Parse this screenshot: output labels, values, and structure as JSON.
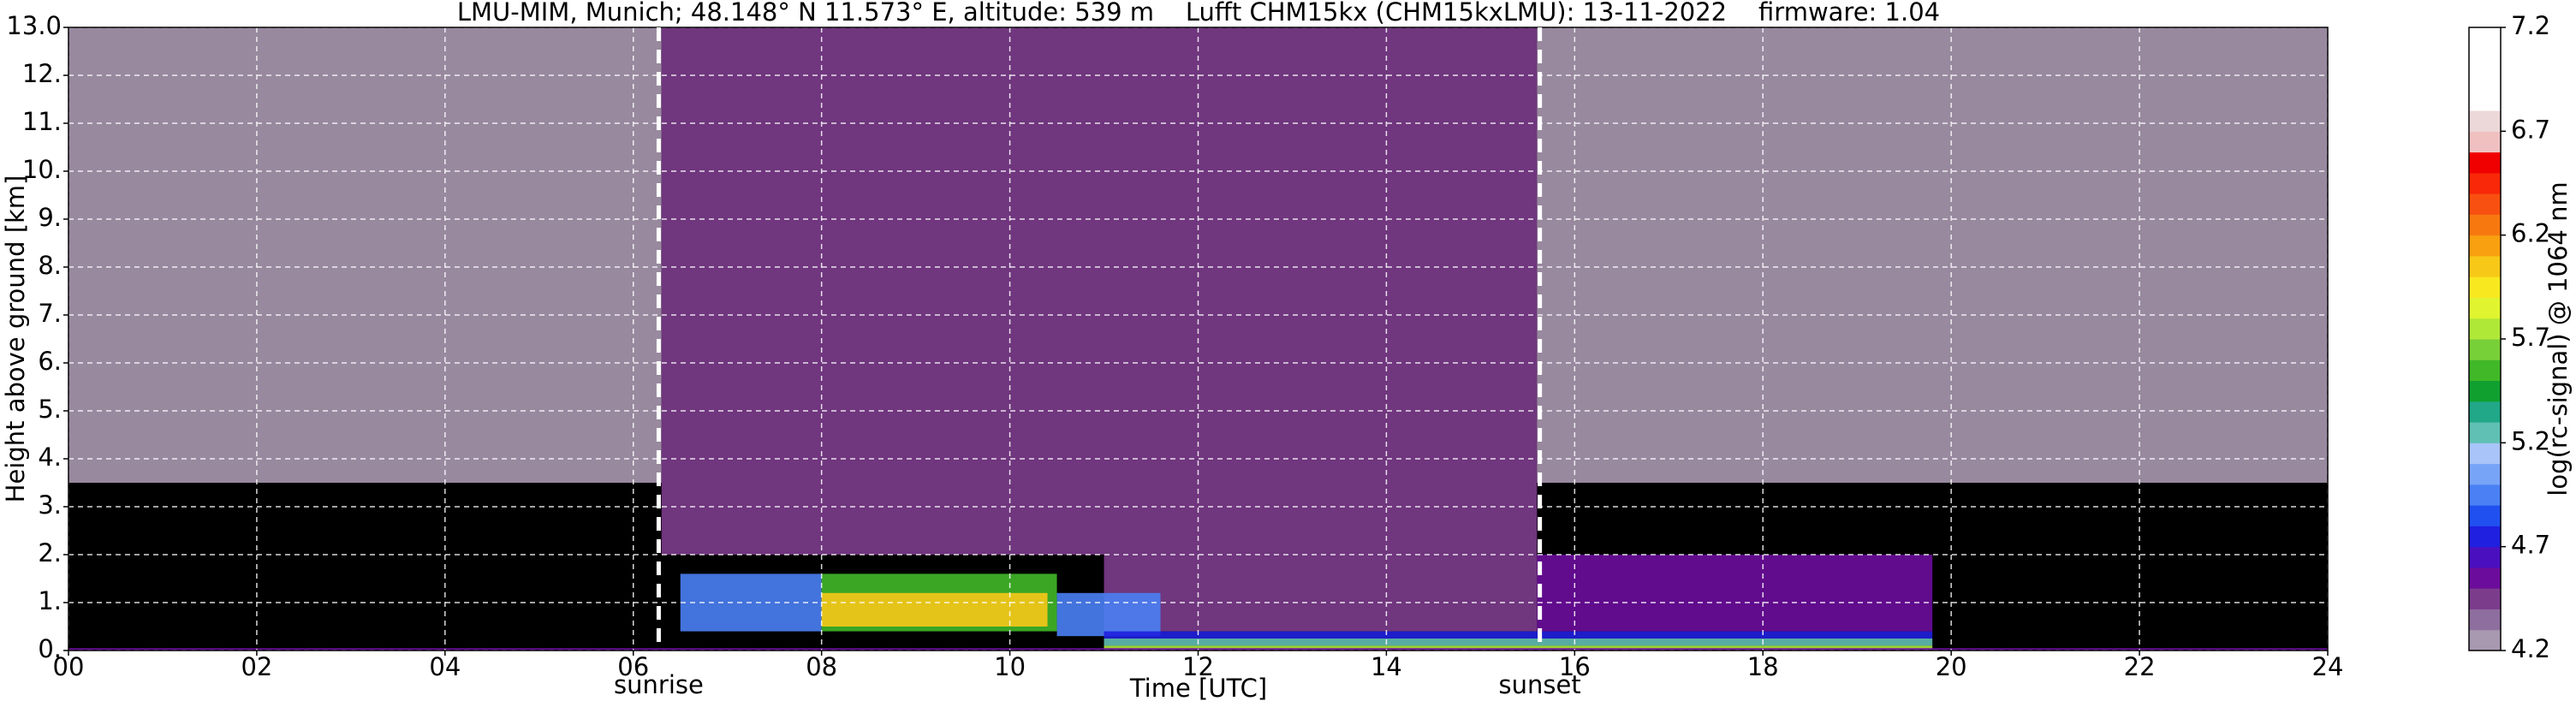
{
  "chart_data": {
    "type": "heatmap",
    "title": "LMU-MIM, Munich; 48.148° N 11.573° E, altitude: 539 m    Lufft CHM15kx (CHM15kxLMU): 13-11-2022    firmware: 1.04",
    "xlabel": "Time [UTC]",
    "ylabel": "Height above ground [km]",
    "colorbar_label": "log(rc-signal) @ 1064 nm",
    "xlim": [
      0,
      24
    ],
    "ylim": [
      0,
      13
    ],
    "zlim": [
      4.2,
      7.2
    ],
    "xticks": [
      {
        "value": 0,
        "label": "00"
      },
      {
        "value": 2,
        "label": "02"
      },
      {
        "value": 4,
        "label": "04"
      },
      {
        "value": 6,
        "label": "06"
      },
      {
        "value": 8,
        "label": "08"
      },
      {
        "value": 10,
        "label": "10"
      },
      {
        "value": 12,
        "label": "12"
      },
      {
        "value": 14,
        "label": "14"
      },
      {
        "value": 16,
        "label": "16"
      },
      {
        "value": 18,
        "label": "18"
      },
      {
        "value": 20,
        "label": "20"
      },
      {
        "value": 22,
        "label": "22"
      },
      {
        "value": 24,
        "label": "24"
      }
    ],
    "yticks": [
      {
        "value": 0,
        "label": "0."
      },
      {
        "value": 1,
        "label": "1."
      },
      {
        "value": 2,
        "label": "2."
      },
      {
        "value": 3,
        "label": "3."
      },
      {
        "value": 4,
        "label": "4."
      },
      {
        "value": 5,
        "label": "5."
      },
      {
        "value": 6,
        "label": "6."
      },
      {
        "value": 7,
        "label": "7."
      },
      {
        "value": 8,
        "label": "8."
      },
      {
        "value": 9,
        "label": "9."
      },
      {
        "value": 10,
        "label": "10."
      },
      {
        "value": 11,
        "label": "11."
      },
      {
        "value": 12,
        "label": "12."
      },
      {
        "value": 13,
        "label": "13.0"
      }
    ],
    "zticks": [
      4.2,
      4.7,
      5.2,
      5.7,
      6.2,
      6.7,
      7.2
    ],
    "grid": true,
    "background": "#000000",
    "colorscale": [
      "#a898b0",
      "#8e6e9e",
      "#7c3c8c",
      "#6c0c9c",
      "#4a10c0",
      "#2020e0",
      "#2050f0",
      "#4a80f4",
      "#78a4f8",
      "#a8c4f8",
      "#60c0b4",
      "#20a888",
      "#10a030",
      "#40b828",
      "#78d038",
      "#b0e838",
      "#e0f430",
      "#f8e820",
      "#f8c818",
      "#f8a010",
      "#f87810",
      "#f85010",
      "#f82808",
      "#f00000",
      "#f0c0c0",
      "#ecd8d8",
      "#ffffff",
      "#ffffff",
      "#ffffff",
      "#ffffff"
    ],
    "patches": [
      {
        "x": [
          0,
          6.3
        ],
        "y": [
          3.5,
          13
        ],
        "value": 4.3
      },
      {
        "x": [
          6.3,
          15.6
        ],
        "y": [
          2.0,
          13
        ],
        "value": 4.5
      },
      {
        "x": [
          15.6,
          24
        ],
        "y": [
          3.5,
          13
        ],
        "value": 4.3
      },
      {
        "x": [
          15.6,
          19.8
        ],
        "y": [
          0.4,
          2.0
        ],
        "value": 4.6
      },
      {
        "x": [
          11.0,
          15.6
        ],
        "y": [
          0.4,
          2.0
        ],
        "value": 4.5
      },
      {
        "x": [
          6.5,
          8.0
        ],
        "y": [
          0.4,
          1.6
        ],
        "value": 5.0
      },
      {
        "x": [
          8.0,
          10.5
        ],
        "y": [
          0.4,
          1.6
        ],
        "value": 5.6
      },
      {
        "x": [
          8.0,
          10.4
        ],
        "y": [
          0.5,
          1.2
        ],
        "value": 6.1
      },
      {
        "x": [
          10.5,
          11.6
        ],
        "y": [
          0.3,
          1.2
        ],
        "value": 4.9
      },
      {
        "x": [
          11.0,
          19.8
        ],
        "y": [
          0.25,
          0.4
        ],
        "value": 4.7
      },
      {
        "x": [
          11.0,
          19.8
        ],
        "y": [
          0.1,
          0.25
        ],
        "value": 5.3
      },
      {
        "x": [
          11.0,
          19.8
        ],
        "y": [
          0,
          0.1
        ],
        "value": 5.8
      },
      {
        "x": [
          0,
          24
        ],
        "y": [
          0,
          0.05
        ],
        "value": 4.6
      }
    ],
    "annotations": [
      {
        "x": 6.27,
        "label": "sunrise"
      },
      {
        "x": 15.63,
        "label": "sunset"
      }
    ]
  }
}
